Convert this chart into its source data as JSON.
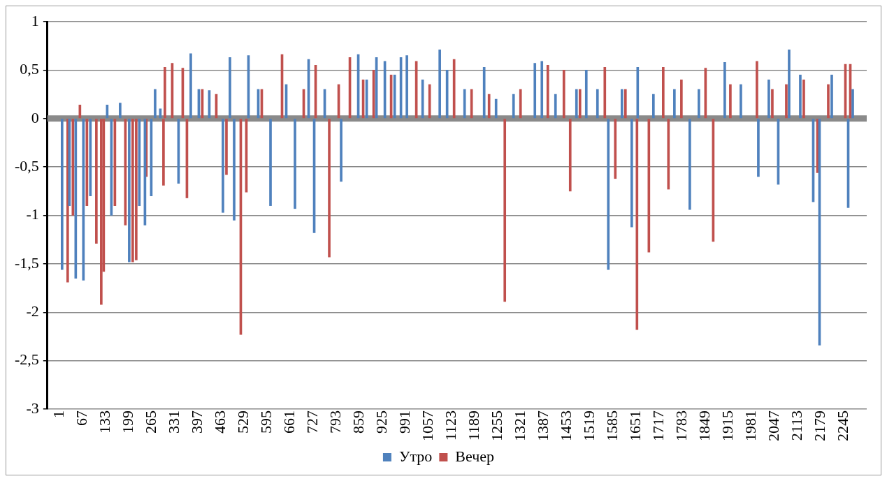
{
  "chart_data": {
    "type": "bar",
    "xlim": [
      0.5,
      2276.5
    ],
    "xticks": [
      1,
      67,
      133,
      199,
      265,
      331,
      397,
      463,
      529,
      595,
      661,
      727,
      793,
      859,
      925,
      991,
      1057,
      1123,
      1189,
      1255,
      1321,
      1387,
      1453,
      1519,
      1585,
      1651,
      1717,
      1783,
      1849,
      1915,
      1981,
      2047,
      2113,
      2179,
      2245
    ],
    "ylim": [
      -3,
      1
    ],
    "yticks": [
      -3,
      {
        "value": -2.5,
        "label": "-2,5"
      },
      -2,
      {
        "value": -1.5,
        "label": "-1,5"
      },
      -1,
      {
        "value": -0.5,
        "label": "-0,5"
      },
      0,
      {
        "value": 0.5,
        "label": "0,5"
      },
      1
    ],
    "grid": "y",
    "legend": "bottom",
    "series": [
      {
        "name": "Утро",
        "color": "#4f81bd",
        "x": [
          9,
          30,
          48,
          70,
          90,
          138,
          150,
          175,
          201,
          230,
          246,
          264,
          275,
          290,
          342,
          377,
          400,
          430,
          469,
          489,
          501,
          542,
          570,
          605,
          650,
          675,
          714,
          730,
          760,
          807,
          856,
          880,
          908,
          932,
          960,
          978,
          995,
          1040,
          1089,
          1110,
          1160,
          1216,
          1250,
          1300,
          1361,
          1381,
          1420,
          1480,
          1508,
          1540,
          1571,
          1610,
          1638,
          1655,
          1700,
          1760,
          1804,
          1830,
          1904,
          1950,
          2000,
          2030,
          2057,
          2088,
          2120,
          2157,
          2175,
          2210,
          2257,
          2270
        ],
        "values": [
          -1.56,
          -0.9,
          -1.65,
          -1.67,
          -0.8,
          0.14,
          -1.0,
          0.16,
          -1.48,
          -0.9,
          -1.1,
          -0.8,
          0.3,
          0.1,
          -0.67,
          0.67,
          0.3,
          0.29,
          -0.97,
          0.63,
          -1.05,
          0.65,
          0.3,
          -0.9,
          0.35,
          -0.93,
          0.61,
          -1.18,
          0.3,
          -0.65,
          0.66,
          0.4,
          0.63,
          0.59,
          0.45,
          0.63,
          0.65,
          0.4,
          0.71,
          0.5,
          0.3,
          0.53,
          0.2,
          0.25,
          0.57,
          0.59,
          0.25,
          0.3,
          0.5,
          0.3,
          -1.56,
          0.3,
          -1.12,
          0.53,
          0.25,
          0.3,
          -0.94,
          0.3,
          0.58,
          0.35,
          -0.6,
          0.4,
          -0.68,
          0.71,
          0.45,
          -0.86,
          -2.34,
          0.45,
          -0.92,
          0.3
        ]
      },
      {
        "name": "Вечер",
        "color": "#c0504d",
        "x": [
          25,
          40,
          60,
          80,
          107,
          121,
          128,
          160,
          190,
          211,
          221,
          250,
          299,
          303,
          324,
          354,
          366,
          410,
          450,
          479,
          520,
          536,
          580,
          638,
          700,
          734,
          773,
          800,
          832,
          870,
          900,
          950,
          1022,
          1060,
          1130,
          1180,
          1230,
          1275,
          1320,
          1398,
          1444,
          1462,
          1490,
          1561,
          1591,
          1620,
          1653,
          1687,
          1728,
          1743,
          1780,
          1849,
          1871,
          1920,
          1996,
          2040,
          2080,
          2130,
          2169,
          2200,
          2249,
          2263
        ],
        "values": [
          -1.69,
          -1.0,
          0.14,
          -0.9,
          -1.29,
          -1.92,
          -1.58,
          -0.9,
          -1.1,
          -1.48,
          -1.46,
          -0.6,
          -0.69,
          0.53,
          0.57,
          0.52,
          -0.82,
          0.3,
          0.25,
          -0.58,
          -2.23,
          -0.76,
          0.3,
          0.66,
          0.3,
          0.55,
          -1.43,
          0.35,
          0.63,
          0.4,
          0.5,
          0.45,
          0.59,
          0.35,
          0.61,
          0.3,
          0.25,
          -1.89,
          0.3,
          0.55,
          0.5,
          -0.75,
          0.3,
          0.53,
          -0.62,
          0.3,
          -2.18,
          -1.38,
          0.53,
          -0.73,
          0.4,
          0.52,
          -1.27,
          0.35,
          0.59,
          0.3,
          0.35,
          0.4,
          -0.56,
          0.35,
          0.56,
          0.56
        ]
      }
    ]
  }
}
